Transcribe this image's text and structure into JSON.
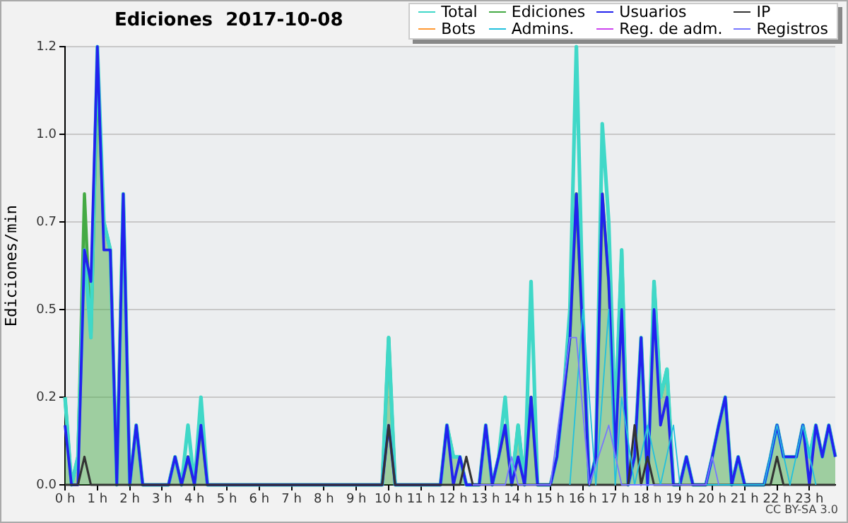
{
  "chart_data": {
    "type": "line",
    "title": "Ediciones  2017-10-08",
    "ylabel": "Ediciones/min",
    "annotations": [
      "CC BY-SA 3.0"
    ],
    "x": [
      0,
      0.2,
      0.4,
      0.6,
      0.8,
      1,
      1.2,
      1.4,
      1.6,
      1.8,
      2,
      2.2,
      2.4,
      2.6,
      2.8,
      3,
      3.2,
      3.4,
      3.6,
      3.8,
      4,
      4.2,
      4.4,
      4.6,
      4.8,
      5,
      5.2,
      5.4,
      5.6,
      5.8,
      6,
      6.2,
      6.4,
      6.6,
      6.8,
      7,
      7.2,
      7.4,
      7.6,
      7.8,
      8,
      8.2,
      8.4,
      8.6,
      8.8,
      9,
      9.2,
      9.4,
      9.6,
      9.8,
      10,
      10.2,
      10.4,
      10.6,
      10.8,
      11,
      11.2,
      11.4,
      11.6,
      11.8,
      12,
      12.2,
      12.4,
      12.6,
      12.8,
      13,
      13.2,
      13.4,
      13.6,
      13.8,
      14,
      14.2,
      14.4,
      14.6,
      14.8,
      15,
      15.2,
      15.4,
      15.6,
      15.8,
      16,
      16.2,
      16.4,
      16.6,
      16.8,
      17,
      17.2,
      17.4,
      17.6,
      17.8,
      18,
      18.2,
      18.4,
      18.6,
      18.8,
      19,
      19.2,
      19.4,
      19.6,
      19.8,
      20,
      20.2,
      20.4,
      20.6,
      20.8,
      21,
      21.2,
      21.4,
      21.6,
      21.8,
      22,
      22.2,
      22.4,
      22.6,
      22.8,
      23,
      23.2,
      23.4,
      23.6,
      23.8
    ],
    "series": [
      {
        "name": "Total",
        "color": "#40d8c8",
        "values": [
          0.25,
          0,
          0.08,
          0.67,
          0.42,
          1.25,
          0.75,
          0.67,
          0,
          0.83,
          0,
          0.17,
          0,
          0,
          0,
          0,
          0,
          0.08,
          0,
          0.17,
          0,
          0.25,
          0,
          0,
          0,
          0,
          0,
          0,
          0,
          0,
          0,
          0,
          0,
          0,
          0,
          0,
          0,
          0,
          0,
          0,
          0,
          0,
          0,
          0,
          0,
          0,
          0,
          0,
          0,
          0,
          0.42,
          0,
          0,
          0,
          0,
          0,
          0,
          0,
          0,
          0.17,
          0.08,
          0.08,
          0,
          0,
          0,
          0.17,
          0,
          0.08,
          0.25,
          0,
          0.17,
          0,
          0.58,
          0,
          0,
          0,
          0.08,
          0.25,
          0.5,
          1.25,
          0.5,
          0,
          0.08,
          1.03,
          0.75,
          0.17,
          0.67,
          0,
          0.08,
          0.42,
          0,
          0.58,
          0.25,
          0.33,
          0,
          0,
          0.08,
          0,
          0,
          0,
          0.08,
          0.17,
          0.25,
          0,
          0.08,
          0,
          0,
          0,
          0,
          0.08,
          0.17,
          0.08,
          0.08,
          0.08,
          0.17,
          0.08,
          0.17,
          0.08,
          0.17,
          0.08
        ]
      },
      {
        "name": "Ediciones",
        "type": "area",
        "color": "#44aa44",
        "values": [
          0.25,
          0,
          0.08,
          0.83,
          0.42,
          1.17,
          0.75,
          0.67,
          0,
          0.83,
          0,
          0.17,
          0,
          0,
          0,
          0,
          0,
          0.08,
          0,
          0.08,
          0,
          0.17,
          0,
          0,
          0,
          0,
          0,
          0,
          0,
          0,
          0,
          0,
          0,
          0,
          0,
          0,
          0,
          0,
          0,
          0,
          0,
          0,
          0,
          0,
          0,
          0,
          0,
          0,
          0,
          0,
          0.42,
          0,
          0,
          0,
          0,
          0,
          0,
          0,
          0,
          0.17,
          0.08,
          0.08,
          0,
          0,
          0,
          0.17,
          0,
          0.08,
          0.17,
          0,
          0.17,
          0,
          0.25,
          0,
          0,
          0,
          0.08,
          0.25,
          0.42,
          0.83,
          0.42,
          0,
          0.08,
          0.83,
          0.58,
          0.17,
          0.67,
          0,
          0.08,
          0.42,
          0,
          0.58,
          0.25,
          0.33,
          0,
          0,
          0.08,
          0,
          0,
          0,
          0.08,
          0.17,
          0.25,
          0,
          0.08,
          0,
          0,
          0,
          0,
          0.08,
          0.17,
          0.08,
          0.08,
          0.08,
          0.17,
          0.08,
          0.17,
          0.08,
          0.17,
          0.08
        ]
      },
      {
        "name": "Usuarios",
        "color": "#2222ee",
        "values": [
          0.17,
          0,
          0,
          0.67,
          0.58,
          1.25,
          0.67,
          0.67,
          0,
          0.83,
          0,
          0.17,
          0,
          0,
          0,
          0,
          0,
          0.08,
          0,
          0.08,
          0,
          0.17,
          0,
          0,
          0,
          0,
          0,
          0,
          0,
          0,
          0,
          0,
          0,
          0,
          0,
          0,
          0,
          0,
          0,
          0,
          0,
          0,
          0,
          0,
          0,
          0,
          0,
          0,
          0,
          0,
          0.17,
          0,
          0,
          0,
          0,
          0,
          0,
          0,
          0,
          0.17,
          0,
          0.08,
          0,
          0,
          0,
          0.17,
          0,
          0.08,
          0.17,
          0,
          0.08,
          0,
          0.25,
          0,
          0,
          0,
          0.08,
          0.25,
          0.42,
          0.83,
          0.42,
          0,
          0.08,
          0.83,
          0.58,
          0.08,
          0.5,
          0,
          0.08,
          0.42,
          0,
          0.5,
          0.17,
          0.25,
          0,
          0,
          0.08,
          0,
          0,
          0,
          0.08,
          0.17,
          0.25,
          0,
          0.08,
          0,
          0,
          0,
          0,
          0.08,
          0.17,
          0.08,
          0.08,
          0.08,
          0.17,
          0,
          0.17,
          0.08,
          0.17,
          0.08
        ]
      },
      {
        "name": "IP",
        "color": "#333333",
        "values": [
          0,
          0,
          0,
          0.08,
          0,
          0,
          0,
          0,
          0,
          0,
          0,
          0,
          0,
          0,
          0,
          0,
          0,
          0,
          0,
          0,
          0,
          0,
          0,
          0,
          0,
          0,
          0,
          0,
          0,
          0,
          0,
          0,
          0,
          0,
          0,
          0,
          0,
          0,
          0,
          0,
          0,
          0,
          0,
          0,
          0,
          0,
          0,
          0,
          0,
          0,
          0.17,
          0,
          0,
          0,
          0,
          0,
          0,
          0,
          0,
          0,
          0,
          0,
          0.08,
          0,
          0,
          0,
          0,
          0,
          0,
          0,
          0,
          0,
          0,
          0,
          0,
          0,
          0,
          0,
          0,
          0,
          0,
          0,
          0,
          0,
          0,
          0,
          0,
          0,
          0.17,
          0,
          0.08,
          0,
          0,
          0,
          0,
          0,
          0,
          0,
          0,
          0,
          0,
          0,
          0,
          0,
          0,
          0,
          0,
          0,
          0,
          0,
          0.08,
          0,
          0,
          0,
          0,
          0,
          0,
          0,
          0,
          0
        ]
      },
      {
        "name": "Bots",
        "color": "#ff9933",
        "values": [
          null,
          null,
          null,
          null,
          null,
          null,
          null,
          null,
          null,
          null,
          null,
          null,
          null,
          null,
          null,
          null,
          null,
          null,
          null,
          null,
          null,
          null,
          null,
          null,
          null,
          null,
          null,
          null,
          null,
          null,
          null,
          null,
          null,
          null,
          null,
          null,
          null,
          null,
          null,
          null,
          null,
          null,
          null,
          null,
          null,
          null,
          null,
          null,
          null,
          null,
          null,
          null,
          null,
          null,
          null,
          null,
          null,
          null,
          null,
          null,
          null,
          null,
          null,
          null,
          null,
          null,
          null,
          null,
          null,
          null,
          null,
          null,
          null,
          null,
          null,
          null,
          null,
          null,
          null,
          null,
          null,
          null,
          null,
          null,
          null,
          null,
          null,
          null,
          null,
          null,
          null,
          null,
          null,
          null,
          null,
          null,
          null,
          null,
          null,
          null,
          null,
          null,
          null,
          null,
          null,
          null,
          null,
          null,
          null,
          null,
          null,
          null,
          null,
          null,
          null,
          null,
          null,
          null,
          null,
          null
        ]
      },
      {
        "name": "Admins.",
        "color": "#22c0dd",
        "x": [
          15.6,
          16,
          16.4,
          16.8,
          17,
          17.2,
          17.6,
          18,
          18.4,
          18.8,
          19,
          21.6,
          22,
          22.4,
          22.8,
          23.2
        ],
        "values": [
          0,
          0.5,
          0,
          0.5,
          0,
          0.25,
          0,
          0.17,
          0,
          0.17,
          0,
          0,
          0.17,
          0,
          0.17,
          0
        ]
      },
      {
        "name": "Reg. de adm.",
        "color": "#cc44ee",
        "values": [
          null,
          null,
          null,
          null,
          null,
          null,
          null,
          null,
          null,
          null,
          null,
          null,
          null,
          null,
          null,
          null,
          null,
          null,
          null,
          null,
          null,
          null,
          null,
          null,
          null,
          null,
          null,
          null,
          null,
          null,
          null,
          null,
          null,
          null,
          null,
          null,
          null,
          null,
          null,
          null,
          null,
          null,
          null,
          null,
          null,
          null,
          null,
          null,
          null,
          null,
          null,
          null,
          null,
          null,
          null,
          null,
          null,
          null,
          null,
          null,
          null,
          null,
          null,
          null,
          null,
          null,
          null,
          null,
          null,
          null,
          null,
          null,
          null,
          null,
          null,
          null,
          null,
          null,
          null,
          null,
          null,
          null,
          null,
          null,
          null,
          null,
          null,
          null,
          null,
          null,
          null,
          null,
          null,
          null,
          null,
          null,
          null,
          null,
          null,
          null,
          null,
          null,
          null,
          null,
          null,
          null,
          null,
          null,
          null,
          null,
          null,
          null,
          null,
          null,
          null,
          null,
          null,
          null,
          null,
          null
        ]
      },
      {
        "name": "Registros",
        "color": "#7777ff",
        "x": [
          12.6,
          13.6,
          13.8,
          14,
          15,
          15.6,
          15.8,
          16.2,
          16.8,
          17.2,
          19.8,
          20,
          20.2
        ],
        "values": [
          0,
          0,
          0.08,
          0,
          0,
          0.42,
          0.42,
          0,
          0.17,
          0,
          0,
          0.08,
          0
        ]
      }
    ],
    "xlim": [
      0,
      23.8
    ],
    "xticks": [
      {
        "value": 0,
        "label": "0 h"
      },
      {
        "value": 1,
        "label": "1 h"
      },
      {
        "value": 2,
        "label": "2 h"
      },
      {
        "value": 3,
        "label": "3 h"
      },
      {
        "value": 4,
        "label": "4 h"
      },
      {
        "value": 5,
        "label": "5 h"
      },
      {
        "value": 6,
        "label": "6 h"
      },
      {
        "value": 7,
        "label": "7 h"
      },
      {
        "value": 8,
        "label": "8 h"
      },
      {
        "value": 9,
        "label": "9 h"
      },
      {
        "value": 10,
        "label": "10 h"
      },
      {
        "value": 11,
        "label": "11 h"
      },
      {
        "value": 12,
        "label": "12 h"
      },
      {
        "value": 13,
        "label": "13 h"
      },
      {
        "value": 14,
        "label": "14 h"
      },
      {
        "value": 15,
        "label": "15 h"
      },
      {
        "value": 16,
        "label": "16 h"
      },
      {
        "value": 17,
        "label": "17 h"
      },
      {
        "value": 18,
        "label": "18 h"
      },
      {
        "value": 19,
        "label": "19 h"
      },
      {
        "value": 20,
        "label": "20 h"
      },
      {
        "value": 21,
        "label": "21 h"
      },
      {
        "value": 22,
        "label": "22 h"
      },
      {
        "value": 23,
        "label": "23 h"
      }
    ],
    "ylim": [
      0,
      1.25
    ],
    "yticks": [
      {
        "value": 0,
        "label": "0.0"
      },
      {
        "value": 0.25,
        "label": "0.2"
      },
      {
        "value": 0.5,
        "label": "0.5"
      },
      {
        "value": 0.75,
        "label": "0.7"
      },
      {
        "value": 1,
        "label": "1.0"
      },
      {
        "value": 1.25,
        "label": "1.2"
      }
    ],
    "grid": "y",
    "legend": "top right",
    "marker": "none",
    "line_style": "solid"
  }
}
